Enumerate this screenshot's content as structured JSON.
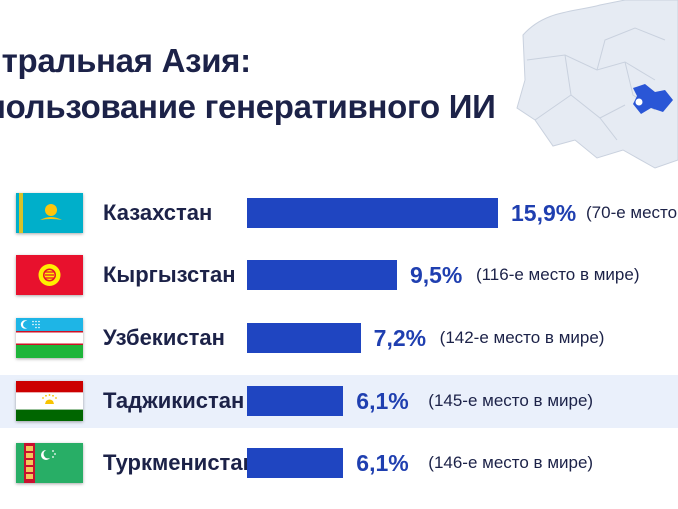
{
  "colors": {
    "bar": "#1f45c1",
    "value_text": "#1f3fb0",
    "highlight_row": "#eaf0fb",
    "map_land": "#e6ebf3",
    "map_border": "#c9d1de",
    "map_highlight": "#2a56d6"
  },
  "map": {
    "icon": "central-asia-map-icon"
  },
  "chart_data": {
    "type": "bar",
    "orientation": "horizontal",
    "title_lines": [
      "нтральная Азия:",
      "пользование генеративного ИИ"
    ],
    "categories": [
      "Казахстан",
      "Кыргызстан",
      "Узбекистан",
      "Таджикистан",
      "Туркменистан"
    ],
    "values": [
      15.9,
      9.5,
      7.2,
      6.1,
      6.1
    ],
    "value_labels": [
      "15,9%",
      "9,5%",
      "7,2%",
      "6,1%",
      "6,1%"
    ],
    "rank_labels": [
      "(70-е место",
      "(116-е место в мире)",
      "(142-е место в мире)",
      "(145-е место в мире)",
      "(146-е место в мире)"
    ],
    "flags": [
      "kazakhstan-flag-icon",
      "kyrgyzstan-flag-icon",
      "uzbekistan-flag-icon",
      "tajikistan-flag-icon",
      "turkmenistan-flag-icon"
    ],
    "highlighted_category": "Таджикистан",
    "xlim": [
      0,
      15.9
    ]
  }
}
